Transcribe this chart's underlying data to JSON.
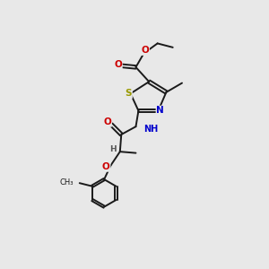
{
  "bg_color": "#e8e8e8",
  "bond_color": "#1a1a1a",
  "bond_width": 1.4,
  "atom_colors": {
    "C": "#1a1a1a",
    "H": "#555555",
    "N": "#0000cc",
    "O": "#cc0000",
    "S": "#999900"
  },
  "font_size_atom": 7.5,
  "font_size_small": 6.0
}
